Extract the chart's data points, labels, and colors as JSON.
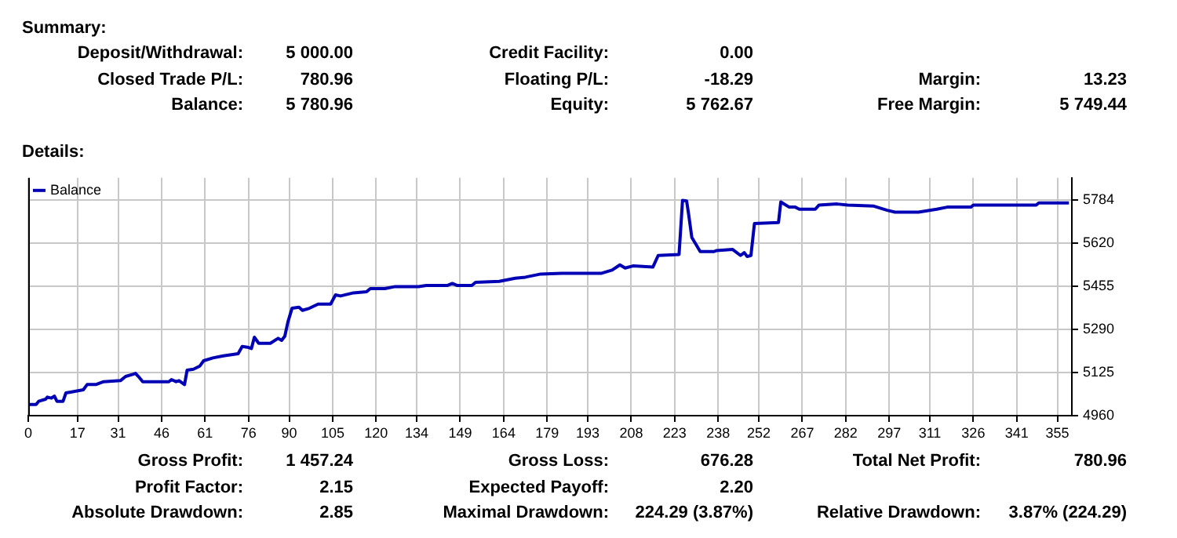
{
  "chart_data": [
    {
      "type": "other",
      "title": "Summary:",
      "annotations": [
        "Deposit/Withdrawal:",
        "5 000.00",
        "Credit Facility:",
        "0.00",
        "Closed Trade P/L:",
        "780.96",
        "Floating P/L:",
        "-18.29",
        "Margin:",
        "13.23",
        "Balance:",
        "5 780.96",
        "Equity:",
        "5 762.67",
        "Free Margin:",
        "5 749.44"
      ]
    },
    {
      "type": "line",
      "title": "Details:",
      "grid": true,
      "legend": "top left",
      "x": [
        0,
        2.7,
        3.6,
        6,
        6.6,
        8,
        9,
        9.9,
        12,
        13,
        15,
        19,
        20.3,
        23.3,
        26,
        31.8,
        33.6,
        36,
        37,
        38,
        39.5,
        44,
        48.5,
        49.4,
        51,
        52,
        53.9,
        54.8,
        57,
        59.2,
        60.5,
        63.7,
        67.3,
        72.4,
        73.8,
        76,
        77,
        78,
        79.5,
        83.5,
        86.2,
        87.4,
        88.5,
        89.6,
        91,
        93.4,
        94.6,
        97,
        100,
        104.3,
        106,
        107.7,
        112.2,
        116.7,
        118,
        123,
        126.6,
        134.6,
        137.3,
        144.5,
        146.3,
        148,
        153,
        154.3,
        162.5,
        168,
        171.5,
        176.8,
        184,
        197.8,
        201.4,
        204.1,
        205.9,
        208.6,
        215.5,
        217.3,
        224.5,
        225.7,
        227.1,
        227.8,
        228.9,
        231.8,
        236.6,
        237.5,
        243,
        245.7,
        247,
        248,
        249.3,
        250.5,
        258.8,
        259.6,
        262.5,
        264.6,
        266,
        271.5,
        272.8,
        279,
        282.7,
        291.7,
        296.3,
        299,
        307.1,
        313.4,
        317,
        325.2,
        326,
        347.7,
        348.6,
        359
      ],
      "series": [
        {
          "name": "Balance",
          "color": "#0000b4",
          "values": [
            5003,
            5003,
            5015,
            5023,
            5031,
            5027,
            5035,
            5015,
            5015,
            5047,
            5051,
            5059,
            5079,
            5079,
            5090,
            5094,
            5110,
            5118,
            5122,
            5110,
            5090,
            5090,
            5090,
            5098,
            5090,
            5094,
            5079,
            5134,
            5138,
            5150,
            5170,
            5181,
            5189,
            5197,
            5225,
            5221,
            5217,
            5260,
            5237,
            5237,
            5256,
            5248,
            5264,
            5320,
            5371,
            5375,
            5363,
            5371,
            5387,
            5387,
            5422,
            5418,
            5430,
            5434,
            5446,
            5446,
            5454,
            5454,
            5458,
            5458,
            5466,
            5458,
            5458,
            5470,
            5474,
            5486,
            5490,
            5502,
            5505,
            5505,
            5517,
            5537,
            5525,
            5533,
            5529,
            5573,
            5577,
            5784,
            5782,
            5731,
            5642,
            5588,
            5588,
            5592,
            5596,
            5573,
            5584,
            5569,
            5573,
            5695,
            5699,
            5778,
            5758,
            5758,
            5750,
            5750,
            5766,
            5770,
            5766,
            5762,
            5746,
            5739,
            5739,
            5750,
            5758,
            5758,
            5766,
            5766,
            5774,
            5774
          ]
        }
      ],
      "xlim": [
        0,
        360
      ],
      "xticks": [
        0,
        17,
        31,
        46,
        61,
        76,
        90,
        105,
        120,
        134,
        149,
        164,
        179,
        193,
        208,
        223,
        238,
        252,
        267,
        282,
        297,
        311,
        326,
        341,
        355
      ],
      "ylim": [
        4960,
        5870
      ],
      "yticks": [
        4960,
        5125,
        5290,
        5455,
        5620,
        5784
      ]
    },
    {
      "type": "other",
      "annotations": [
        "Gross Profit:",
        "1 457.24",
        "Gross Loss:",
        "676.28",
        "Total Net Profit:",
        "780.96",
        "Profit Factor:",
        "2.15",
        "Expected Payoff:",
        "2.20",
        "Absolute Drawdown:",
        "2.85",
        "Maximal Drawdown:",
        "224.29 (3.87%)",
        "Relative Drawdown:",
        "3.87% (224.29)"
      ]
    }
  ]
}
